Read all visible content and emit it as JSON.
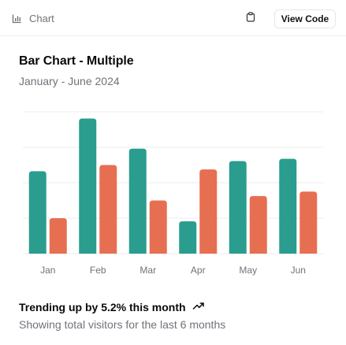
{
  "header": {
    "breadcrumb_label": "Chart",
    "breadcrumb_icon": "bar-chart-icon",
    "copy_icon": "clipboard-icon",
    "view_code_label": "View Code"
  },
  "card": {
    "title": "Bar Chart - Multiple",
    "description": "January - June 2024",
    "footer_trend": "Trending up by 5.2% this month",
    "footer_trend_icon": "trending-up-icon",
    "footer_note": "Showing total visitors for the last 6 months"
  },
  "colors": {
    "series1": "#2a9d8f",
    "series2": "#e76f51",
    "grid": "#eeeeee",
    "tick": "#71717a"
  },
  "chart_data": {
    "type": "bar",
    "categories": [
      "Jan",
      "Feb",
      "Mar",
      "Apr",
      "May",
      "Jun"
    ],
    "series": [
      {
        "values": [
          186,
          305,
          237,
          73,
          209,
          214
        ]
      },
      {
        "values": [
          80,
          200,
          120,
          190,
          130,
          140
        ]
      }
    ],
    "ylim": [
      0,
      320
    ],
    "grid": true,
    "legend": "none"
  }
}
